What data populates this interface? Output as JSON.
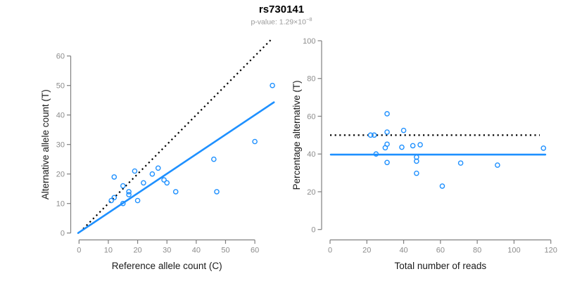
{
  "header": {
    "title": "rs730141",
    "subtitle_prefix": "p-value: 1.29×10",
    "subtitle_exponent": "−8"
  },
  "colors": {
    "point": "#1E90FF",
    "fit_line": "#1E90FF",
    "reference_line": "#000000",
    "axis_line": "#808080",
    "tick_label": "#8c8c8c",
    "axis_title": "#1a1a1a",
    "title": "#000000",
    "subtitle": "#999999"
  },
  "chart_data": [
    {
      "name": "allele-counts-scatter",
      "type": "scatter",
      "xlabel": "Reference allele count (C)",
      "ylabel": "Alternative allele count (T)",
      "xlim": [
        0,
        66
      ],
      "ylim": [
        0,
        66
      ],
      "xticks": [
        0,
        10,
        20,
        30,
        40,
        50,
        60
      ],
      "yticks": [
        0,
        10,
        20,
        30,
        40,
        50,
        60
      ],
      "grid": false,
      "legend": false,
      "points": [
        [
          11,
          11
        ],
        [
          12,
          12
        ],
        [
          12,
          19
        ],
        [
          15,
          10
        ],
        [
          15,
          16
        ],
        [
          17,
          13
        ],
        [
          17,
          14
        ],
        [
          19,
          21
        ],
        [
          20,
          11
        ],
        [
          22,
          17
        ],
        [
          25,
          20
        ],
        [
          27,
          22
        ],
        [
          29,
          18
        ],
        [
          30,
          17
        ],
        [
          33,
          14
        ],
        [
          46,
          25
        ],
        [
          47,
          14
        ],
        [
          60,
          31
        ],
        [
          66,
          50
        ]
      ],
      "lines": [
        {
          "name": "identity-line",
          "style": "dotted",
          "color": "#000000",
          "points": [
            [
              1.4,
              1.4
            ],
            [
              65.8,
              65.8
            ]
          ]
        },
        {
          "name": "fit-line",
          "style": "solid",
          "color": "#1E90FF",
          "points": [
            [
              -0.3,
              0
            ],
            [
              66.5,
              44.3
            ]
          ]
        }
      ]
    },
    {
      "name": "percentage-vs-reads-scatter",
      "type": "scatter",
      "xlabel": "Total number of reads",
      "ylabel": "Percentage alternative (T)",
      "xlim": [
        0,
        120
      ],
      "ylim": [
        0,
        100
      ],
      "xticks": [
        0,
        20,
        40,
        60,
        80,
        100,
        120
      ],
      "yticks": [
        0,
        20,
        40,
        60,
        80,
        100
      ],
      "grid": false,
      "legend": false,
      "points": [
        [
          22,
          50
        ],
        [
          24,
          50
        ],
        [
          25,
          40
        ],
        [
          30,
          43.3
        ],
        [
          31,
          45.2
        ],
        [
          31,
          61.3
        ],
        [
          31,
          51.6
        ],
        [
          31,
          35.5
        ],
        [
          39,
          43.6
        ],
        [
          40,
          52.5
        ],
        [
          45,
          44.4
        ],
        [
          47,
          38.3
        ],
        [
          47,
          36.2
        ],
        [
          47,
          29.8
        ],
        [
          49,
          44.9
        ],
        [
          61,
          23
        ],
        [
          71,
          35.2
        ],
        [
          91,
          34.1
        ],
        [
          116,
          43.1
        ]
      ],
      "lines": [
        {
          "name": "expected-50pct-line",
          "style": "dotted",
          "color": "#000000",
          "points": [
            [
              0,
              50
            ],
            [
              114,
              50
            ]
          ]
        },
        {
          "name": "mean-percentage-line",
          "style": "solid",
          "color": "#1E90FF",
          "points": [
            [
              0.4,
              39.7
            ],
            [
              117,
              39.7
            ]
          ]
        }
      ]
    }
  ]
}
